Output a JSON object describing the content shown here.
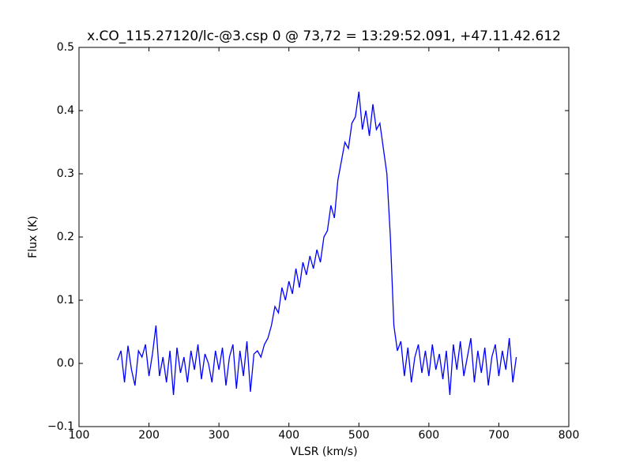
{
  "chart_data": {
    "type": "line",
    "title": "x.CO_115.27120/lc-@3.csp 0 @ 73,72 = 13:29:52.091, +47.11.42.612",
    "x_label": "VLSR (km/s)",
    "y_label": "Flux (K)",
    "x": [
      155,
      160,
      165,
      170,
      175,
      180,
      185,
      190,
      195,
      200,
      205,
      210,
      215,
      220,
      225,
      230,
      235,
      240,
      245,
      250,
      255,
      260,
      265,
      270,
      275,
      280,
      285,
      290,
      295,
      300,
      305,
      310,
      315,
      320,
      325,
      330,
      335,
      340,
      345,
      350,
      355,
      360,
      365,
      370,
      375,
      380,
      385,
      390,
      395,
      400,
      405,
      410,
      415,
      420,
      425,
      430,
      435,
      440,
      445,
      450,
      455,
      460,
      465,
      470,
      475,
      480,
      485,
      490,
      495,
      500,
      505,
      510,
      515,
      520,
      525,
      530,
      535,
      540,
      545,
      550,
      555,
      560,
      565,
      570,
      575,
      580,
      585,
      590,
      595,
      600,
      605,
      610,
      615,
      620,
      625,
      630,
      635,
      640,
      645,
      650,
      655,
      660,
      665,
      670,
      675,
      680,
      685,
      690,
      695,
      700,
      705,
      710,
      715,
      720,
      725
    ],
    "series": [
      {
        "color": "#0000ff",
        "values": [
          0.005,
          0.02,
          -0.03,
          0.028,
          -0.01,
          -0.035,
          0.02,
          0.01,
          0.03,
          -0.02,
          0.015,
          0.06,
          -0.02,
          0.01,
          -0.03,
          0.02,
          -0.05,
          0.025,
          -0.015,
          0.01,
          -0.03,
          0.02,
          -0.01,
          0.03,
          -0.025,
          0.015,
          0.0,
          -0.03,
          0.02,
          -0.01,
          0.025,
          -0.035,
          0.01,
          0.03,
          -0.04,
          0.02,
          -0.02,
          0.035,
          -0.045,
          0.015,
          0.02,
          0.01,
          0.03,
          0.04,
          0.06,
          0.09,
          0.08,
          0.12,
          0.1,
          0.13,
          0.11,
          0.15,
          0.12,
          0.16,
          0.14,
          0.17,
          0.15,
          0.18,
          0.16,
          0.2,
          0.21,
          0.25,
          0.23,
          0.29,
          0.32,
          0.35,
          0.34,
          0.38,
          0.39,
          0.43,
          0.37,
          0.4,
          0.36,
          0.41,
          0.37,
          0.38,
          0.34,
          0.3,
          0.2,
          0.06,
          0.02,
          0.035,
          -0.02,
          0.025,
          -0.03,
          0.01,
          0.03,
          -0.015,
          0.02,
          -0.02,
          0.03,
          -0.01,
          0.015,
          -0.025,
          0.02,
          -0.05,
          0.03,
          -0.01,
          0.035,
          -0.02,
          0.01,
          0.04,
          -0.03,
          0.02,
          -0.015,
          0.025,
          -0.035,
          0.01,
          0.03,
          -0.02,
          0.02,
          -0.01,
          0.04,
          -0.03,
          0.01
        ]
      }
    ],
    "xlim": [
      100,
      800
    ],
    "xticks": [
      100,
      200,
      300,
      400,
      500,
      600,
      700,
      800
    ],
    "ylim": [
      -0.1,
      0.5
    ],
    "yticks": [
      {
        "value": -0.1,
        "label": "−0.1"
      },
      {
        "value": 0,
        "label": "0.0"
      },
      0.1,
      0.2,
      0.3,
      0.4,
      0.5
    ]
  }
}
